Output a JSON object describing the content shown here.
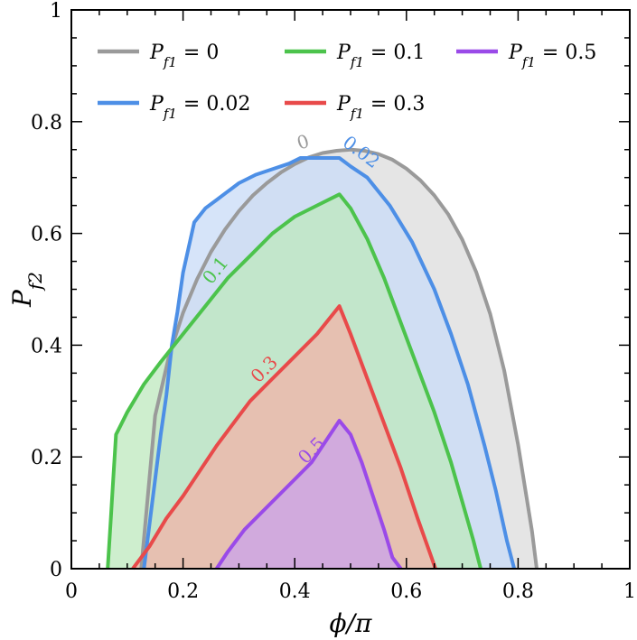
{
  "chart_data": {
    "type": "area",
    "xlabel": "ϕ/π",
    "ylabel": "P_f2",
    "xlim": [
      0,
      1
    ],
    "ylim": [
      0,
      1
    ],
    "x_ticks": [
      "0",
      "0.2",
      "0.4",
      "0.6",
      "0.8",
      "1"
    ],
    "y_ticks": [
      "0",
      "0.2",
      "0.4",
      "0.6",
      "0.8",
      "1"
    ],
    "x_tick_values": [
      0,
      0.2,
      0.4,
      0.6,
      0.8,
      1
    ],
    "y_tick_values": [
      0,
      0.2,
      0.4,
      0.6,
      0.8,
      1
    ],
    "grid": false,
    "legend_position": "top",
    "series": [
      {
        "name": "P_f1 = 0",
        "legend_main": "P",
        "legend_sub": "f1",
        "legend_value": " = 0",
        "curve_label": "0",
        "color": "#9a9a9a",
        "fill": "#dcdcdc",
        "x": [
          0.125,
          0.15,
          0.175,
          0.2,
          0.225,
          0.25,
          0.275,
          0.3,
          0.325,
          0.35,
          0.375,
          0.4,
          0.425,
          0.45,
          0.475,
          0.5,
          0.525,
          0.55,
          0.575,
          0.6,
          0.625,
          0.65,
          0.675,
          0.7,
          0.725,
          0.75,
          0.775,
          0.8,
          0.825,
          0.8333
        ],
        "y": [
          0.0,
          0.274,
          0.381,
          0.458,
          0.518,
          0.567,
          0.607,
          0.64,
          0.668,
          0.69,
          0.709,
          0.724,
          0.736,
          0.744,
          0.748,
          0.75,
          0.748,
          0.742,
          0.732,
          0.716,
          0.695,
          0.668,
          0.634,
          0.589,
          0.531,
          0.456,
          0.355,
          0.222,
          0.067,
          0.0
        ]
      },
      {
        "name": "P_f1 = 0.02",
        "legend_main": "P",
        "legend_sub": "f1",
        "legend_value": " = 0.02",
        "curve_label": "0.02",
        "color": "#4d8fe6",
        "fill": "#c8dbf7",
        "x": [
          0.13,
          0.14,
          0.15,
          0.16,
          0.17,
          0.18,
          0.19,
          0.2,
          0.22,
          0.24,
          0.26,
          0.28,
          0.3,
          0.33,
          0.36,
          0.39,
          0.41,
          0.45,
          0.48,
          0.5,
          0.53,
          0.57,
          0.61,
          0.65,
          0.68,
          0.71,
          0.74,
          0.76,
          0.78,
          0.793
        ],
        "y": [
          0.0,
          0.08,
          0.16,
          0.24,
          0.31,
          0.4,
          0.46,
          0.53,
          0.62,
          0.645,
          0.66,
          0.675,
          0.69,
          0.705,
          0.715,
          0.725,
          0.735,
          0.735,
          0.735,
          0.72,
          0.7,
          0.65,
          0.585,
          0.5,
          0.42,
          0.33,
          0.22,
          0.14,
          0.05,
          0.0
        ]
      },
      {
        "name": "P_f1 = 0.1",
        "legend_main": "P",
        "legend_sub": "f1",
        "legend_value": " = 0.1",
        "curve_label": "0.1",
        "color": "#4cc34c",
        "fill": "#bde8bd",
        "x": [
          0.065,
          0.07,
          0.075,
          0.08,
          0.085,
          0.1,
          0.13,
          0.16,
          0.2,
          0.24,
          0.28,
          0.32,
          0.36,
          0.4,
          0.44,
          0.48,
          0.5,
          0.53,
          0.56,
          0.59,
          0.62,
          0.65,
          0.68,
          0.7,
          0.72,
          0.733
        ],
        "y": [
          0.0,
          0.08,
          0.16,
          0.24,
          0.25,
          0.28,
          0.33,
          0.37,
          0.42,
          0.47,
          0.52,
          0.56,
          0.6,
          0.63,
          0.65,
          0.67,
          0.645,
          0.59,
          0.52,
          0.44,
          0.36,
          0.28,
          0.19,
          0.12,
          0.05,
          0.0
        ]
      },
      {
        "name": "P_f1 = 0.3",
        "legend_main": "P",
        "legend_sub": "f1",
        "legend_value": " = 0.3",
        "curve_label": "0.3",
        "color": "#e84a4a",
        "fill": "#f2b3a8",
        "x": [
          0.11,
          0.14,
          0.17,
          0.2,
          0.23,
          0.26,
          0.29,
          0.32,
          0.36,
          0.4,
          0.44,
          0.48,
          0.5,
          0.53,
          0.56,
          0.59,
          0.62,
          0.645,
          0.652
        ],
        "y": [
          0.0,
          0.04,
          0.09,
          0.13,
          0.175,
          0.22,
          0.26,
          0.3,
          0.34,
          0.38,
          0.42,
          0.47,
          0.42,
          0.34,
          0.26,
          0.18,
          0.09,
          0.02,
          0.0
        ]
      },
      {
        "name": "P_f1 = 0.5",
        "legend_main": "P",
        "legend_sub": "f1",
        "legend_value": " = 0.5",
        "curve_label": "0.5",
        "color": "#9a4ae8",
        "fill": "#caa3ec",
        "x": [
          0.26,
          0.28,
          0.31,
          0.34,
          0.37,
          0.4,
          0.43,
          0.46,
          0.48,
          0.5,
          0.52,
          0.54,
          0.56,
          0.575,
          0.59
        ],
        "y": [
          0.0,
          0.03,
          0.07,
          0.1,
          0.13,
          0.16,
          0.19,
          0.235,
          0.265,
          0.24,
          0.19,
          0.13,
          0.07,
          0.02,
          0.0
        ]
      }
    ]
  }
}
